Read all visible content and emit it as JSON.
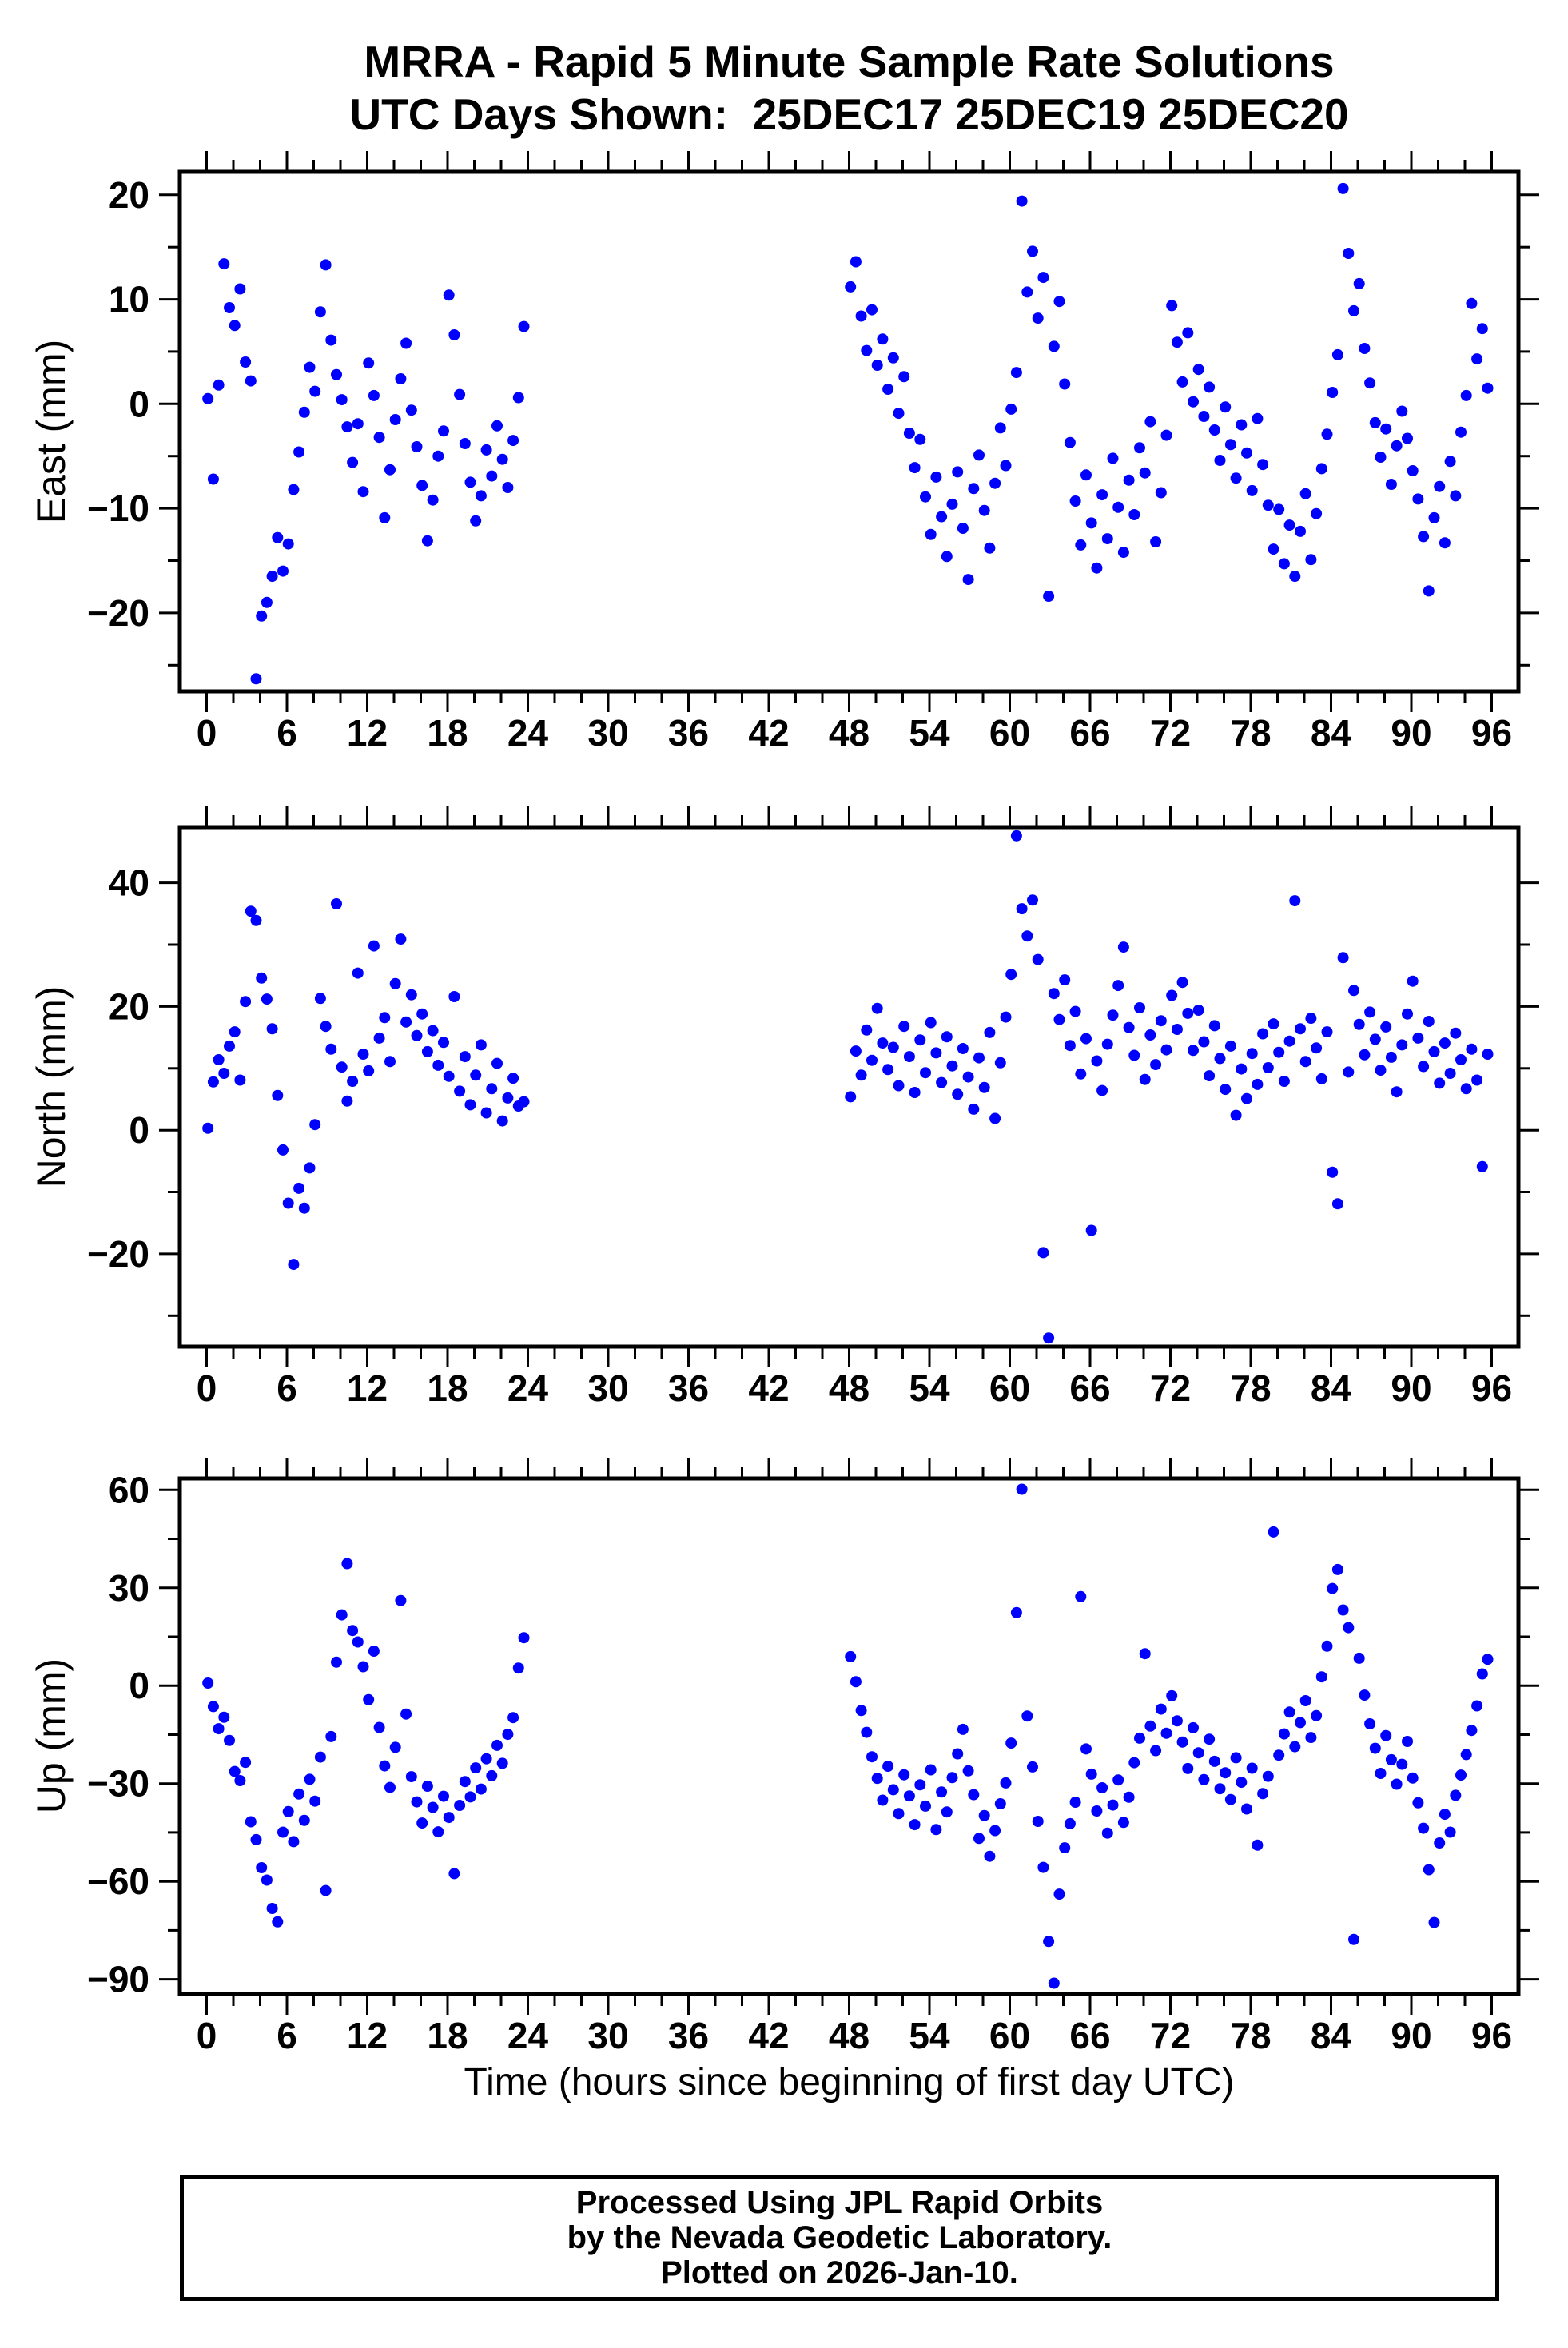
{
  "header": {
    "title": "MRRA - Rapid 5 Minute Sample Rate Solutions",
    "subtitle": "UTC Days Shown:  25DEC17 25DEC19 25DEC20"
  },
  "chart_data": {
    "type": "scatter",
    "title": "MRRA - Rapid 5 Minute Sample Rate Solutions",
    "subtitle": "UTC Days Shown:  25DEC17 25DEC19 25DEC20",
    "marker_color": "#0000ff",
    "grid": false,
    "x": {
      "label": "Time (hours since beginning of first day UTC)",
      "lim": [
        -2,
        98
      ],
      "major": 6,
      "minor": 2,
      "ticks": [
        0,
        6,
        12,
        18,
        24,
        30,
        36,
        42,
        48,
        54,
        60,
        66,
        72,
        78,
        84,
        90,
        96
      ]
    },
    "panels": [
      {
        "name": "east",
        "ylabel": "East (mm)",
        "ylim": [
          -27.5,
          22.2
        ],
        "ymajor": 10,
        "yminor": 5,
        "yticks": [
          20,
          10,
          0,
          -10,
          -20
        ],
        "segments": [
          {
            "x0": 0.1,
            "dx": 0.4,
            "y": [
              0.5,
              -7.2,
              1.8,
              13.4,
              9.2,
              7.5,
              11.0,
              4.0,
              2.2,
              -26.3,
              -20.3,
              -19.0,
              -16.5,
              -12.8,
              -16.0,
              -13.4,
              -8.2,
              -4.6,
              -0.8,
              3.5,
              1.2,
              8.8,
              13.3,
              6.1,
              2.8,
              0.4,
              -2.2,
              -5.6,
              -1.9,
              -8.4,
              3.9,
              0.8,
              -3.2,
              -10.9,
              -6.3,
              -1.5,
              2.4,
              5.8,
              -0.6,
              -4.1,
              -7.8,
              -13.1,
              -9.2,
              -5.0,
              -2.6,
              10.4,
              6.6,
              0.9,
              -3.8,
              -7.5,
              -11.2,
              -8.8,
              -4.4,
              -6.9,
              -2.1,
              -5.3,
              -8.0,
              -3.5,
              0.6,
              7.4
            ]
          },
          {
            "x0": 48.1,
            "dx": 0.4,
            "y": [
              11.2,
              13.6,
              8.4,
              5.1,
              9.0,
              3.7,
              6.2,
              1.4,
              4.4,
              -0.9,
              2.6,
              -2.8,
              -6.1,
              -3.4,
              -8.9,
              -12.5,
              -7.0,
              -10.8,
              -14.6,
              -9.6,
              -6.5,
              -11.9,
              -16.8,
              -8.1,
              -4.9,
              -10.2,
              -13.8,
              -7.6,
              -2.3,
              -5.9,
              -0.5,
              3.0,
              19.4,
              10.7,
              14.6,
              8.2,
              12.1,
              -18.4,
              5.5,
              9.8,
              1.9,
              -3.7,
              -9.3,
              -13.5,
              -6.8,
              -11.4,
              -15.7,
              -8.7,
              -12.9,
              -5.2,
              -9.9,
              -14.2,
              -7.3,
              -10.6,
              -4.2,
              -6.6,
              -1.7,
              -13.2,
              -8.5,
              -3.0,
              9.4,
              5.9,
              2.1,
              6.8,
              0.2,
              3.3,
              -1.2,
              1.6,
              -2.5,
              -5.4,
              -0.3,
              -3.9,
              -7.1,
              -2.0,
              -4.7,
              -8.3,
              -1.4,
              -5.8,
              -9.7,
              -13.9,
              -10.1,
              -15.3,
              -11.6,
              -16.5,
              -12.2,
              -8.6,
              -14.9,
              -10.5,
              -6.2,
              -2.9,
              1.1,
              4.7,
              20.6,
              14.4,
              8.9,
              11.5,
              5.3,
              2.0,
              -1.8,
              -5.1,
              -2.4,
              -7.7,
              -4.0,
              -0.7,
              -3.3,
              -6.4,
              -9.1,
              -12.7,
              -17.9,
              -10.9,
              -7.9,
              -13.3,
              -5.5,
              -8.8,
              -2.7,
              0.8,
              9.6,
              4.3,
              7.2,
              1.5
            ]
          }
        ]
      },
      {
        "name": "north",
        "ylabel": "North (mm)",
        "ylim": [
          -35,
          49
        ],
        "ymajor": 20,
        "yminor": 10,
        "yticks": [
          40,
          20,
          0,
          -20
        ],
        "segments": [
          {
            "x0": 0.1,
            "dx": 0.4,
            "y": [
              0.3,
              7.8,
              11.4,
              9.2,
              13.6,
              15.9,
              8.1,
              20.8,
              35.4,
              33.9,
              24.6,
              21.2,
              16.4,
              5.6,
              -3.2,
              -11.8,
              -21.7,
              -9.4,
              -12.6,
              -6.1,
              0.9,
              21.3,
              16.8,
              13.1,
              36.6,
              10.2,
              4.7,
              7.9,
              25.4,
              12.3,
              9.6,
              29.8,
              14.9,
              18.2,
              11.1,
              23.7,
              30.9,
              17.5,
              21.9,
              15.3,
              18.8,
              12.7,
              16.1,
              10.5,
              14.2,
              8.7,
              21.6,
              6.3,
              11.9,
              4.1,
              8.9,
              13.8,
              2.8,
              6.7,
              10.8,
              1.5,
              5.2,
              8.4,
              3.9,
              4.6
            ]
          },
          {
            "x0": 48.1,
            "dx": 0.4,
            "y": [
              5.4,
              12.8,
              8.9,
              16.2,
              11.3,
              19.7,
              14.1,
              9.8,
              13.4,
              7.2,
              16.8,
              11.9,
              6.1,
              14.6,
              9.3,
              17.4,
              12.5,
              7.7,
              15.1,
              10.4,
              5.8,
              13.2,
              8.6,
              3.4,
              11.7,
              6.9,
              15.8,
              1.9,
              10.9,
              18.3,
              25.2,
              47.6,
              35.8,
              31.4,
              37.2,
              27.6,
              -19.8,
              -33.6,
              22.1,
              17.9,
              24.3,
              13.7,
              19.2,
              9.1,
              14.8,
              -16.2,
              11.2,
              6.4,
              13.9,
              18.6,
              23.4,
              29.6,
              16.6,
              12.1,
              19.8,
              8.2,
              15.4,
              10.6,
              17.7,
              13.0,
              21.8,
              16.3,
              23.9,
              18.9,
              12.9,
              19.4,
              14.3,
              8.8,
              16.9,
              11.6,
              6.6,
              13.6,
              2.4,
              9.9,
              5.1,
              12.4,
              7.4,
              15.6,
              10.1,
              17.2,
              12.6,
              7.9,
              14.4,
              37.1,
              16.4,
              11.1,
              18.1,
              13.3,
              8.3,
              15.9,
              -6.8,
              -11.9,
              27.9,
              9.4,
              22.6,
              17.1,
              12.2,
              19.1,
              14.7,
              9.7,
              16.7,
              11.8,
              6.2,
              13.8,
              18.8,
              24.1,
              14.9,
              10.3,
              17.6,
              12.7,
              7.6,
              14.1,
              9.2,
              15.7,
              11.4,
              6.7,
              13.1,
              8.1,
              -5.9,
              12.3
            ]
          }
        ]
      },
      {
        "name": "up",
        "ylabel": "Up (mm)",
        "ylim": [
          -94.5,
          63.5
        ],
        "ymajor": 30,
        "yminor": 15,
        "yticks": [
          60,
          30,
          0,
          -30,
          -60,
          -90
        ],
        "segments": [
          {
            "x0": 0.1,
            "dx": 0.4,
            "y": [
              0.8,
              -6.4,
              -13.2,
              -9.7,
              -16.8,
              -26.3,
              -29.1,
              -23.5,
              -41.7,
              -47.2,
              -55.8,
              -59.6,
              -68.3,
              -72.4,
              -44.9,
              -38.6,
              -47.8,
              -33.2,
              -41.3,
              -28.7,
              -35.4,
              -21.9,
              -62.8,
              -15.6,
              7.2,
              21.7,
              37.4,
              16.9,
              13.4,
              5.8,
              -4.3,
              10.6,
              -12.8,
              -24.6,
              -31.2,
              -18.9,
              26.1,
              -8.7,
              -27.9,
              -35.6,
              -42.1,
              -30.8,
              -37.3,
              -44.8,
              -33.9,
              -40.4,
              -57.6,
              -36.7,
              -29.4,
              -34.1,
              -25.2,
              -31.7,
              -22.4,
              -27.6,
              -18.3,
              -23.8,
              -14.9,
              -9.8,
              5.4,
              14.7
            ]
          },
          {
            "x0": 48.1,
            "dx": 0.4,
            "y": [
              8.9,
              1.2,
              -7.6,
              -14.3,
              -21.8,
              -28.4,
              -35.1,
              -24.7,
              -31.9,
              -39.2,
              -27.3,
              -33.8,
              -42.6,
              -30.4,
              -36.9,
              -25.8,
              -44.1,
              -32.6,
              -38.7,
              -28.2,
              -20.9,
              -13.4,
              -26.1,
              -33.4,
              -46.8,
              -39.8,
              -52.3,
              -44.4,
              -36.2,
              -29.8,
              -17.6,
              22.4,
              60.2,
              -9.3,
              -24.9,
              -41.6,
              -55.7,
              -78.4,
              -91.2,
              -63.9,
              -49.7,
              -42.3,
              -35.7,
              27.3,
              -19.4,
              -27.1,
              -38.4,
              -31.3,
              -45.2,
              -36.6,
              -28.9,
              -41.9,
              -34.2,
              -23.6,
              -16.1,
              9.8,
              -12.4,
              -19.9,
              -7.2,
              -14.6,
              -3.1,
              -10.8,
              -17.3,
              -25.4,
              -12.9,
              -20.6,
              -28.8,
              -16.4,
              -23.2,
              -31.6,
              -26.7,
              -34.9,
              -22.1,
              -29.6,
              -37.8,
              -25.3,
              -48.9,
              -33.1,
              -27.8,
              47.1,
              -21.3,
              -14.8,
              -8.1,
              -18.7,
              -11.3,
              -4.6,
              -15.9,
              -9.2,
              2.7,
              12.1,
              29.8,
              35.6,
              23.2,
              17.8,
              -77.8,
              8.4,
              -2.9,
              -11.7,
              -19.2,
              -26.9,
              -15.3,
              -22.7,
              -30.2,
              -24.1,
              -17.1,
              -28.3,
              -35.9,
              -43.7,
              -56.4,
              -72.6,
              -48.2,
              -39.4,
              -44.9,
              -33.6,
              -27.4,
              -21.1,
              -13.7,
              -6.2,
              3.6,
              8.1
            ]
          }
        ]
      }
    ]
  },
  "footer": {
    "lines": [
      "Processed Using JPL Rapid Orbits",
      "by the Nevada Geodetic Laboratory.",
      "Plotted on 2026-Jan-10."
    ]
  }
}
